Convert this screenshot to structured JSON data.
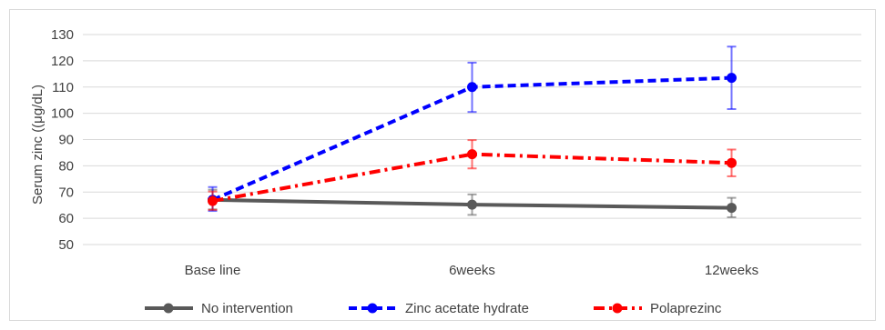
{
  "chart_data": {
    "type": "line",
    "title": "",
    "xlabel": "",
    "ylabel": "Serum zinc ((μg/dL)",
    "categories": [
      "Base line",
      "6weeks",
      "12weeks"
    ],
    "ylim": [
      50,
      130
    ],
    "yticks": [
      50,
      60,
      70,
      80,
      90,
      100,
      110,
      120,
      130
    ],
    "grid": true,
    "legend_position": "bottom",
    "series": [
      {
        "name": "No intervention",
        "color": "#595959",
        "dash": "solid",
        "values": [
          67,
          65.2,
          64
        ],
        "err_low": [
          63.4,
          61.3,
          60.4
        ],
        "err_high": [
          70.9,
          69.1,
          67.8
        ]
      },
      {
        "name": "Zinc acetate hydrate",
        "color": "#0000ff",
        "dash": "dashed",
        "values": [
          67,
          110,
          113.5
        ],
        "err_low": [
          62.8,
          100.5,
          101.6
        ],
        "err_high": [
          71.9,
          119.3,
          125.4
        ]
      },
      {
        "name": "Polaprezinc",
        "color": "#ff0000",
        "dash": "dashdot",
        "values": [
          66.6,
          84.4,
          81.1
        ],
        "err_low": [
          63.2,
          79,
          76
        ],
        "err_high": [
          70.2,
          89.8,
          86.2
        ]
      }
    ]
  }
}
